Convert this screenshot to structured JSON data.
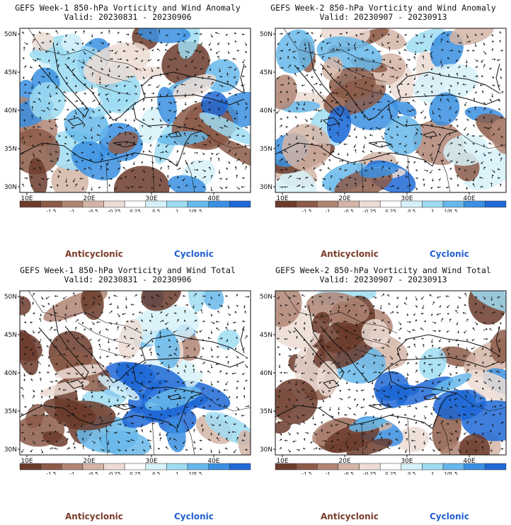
{
  "panels": [
    {
      "title": "GEFS Week-1 850-hPa Vorticity and Wind Anomaly",
      "valid": "Valid: 20230831 - 20230906",
      "tint": "anomaly",
      "seed": 3
    },
    {
      "title": "GEFS Week-2 850-hPa Vorticity and Wind Anomaly",
      "valid": "Valid: 20230907 - 20230913",
      "tint": "anomaly2",
      "seed": 7
    },
    {
      "title": "GEFS Week-1 850-hPa Vorticity and Wind Total",
      "valid": "Valid: 20230831 - 20230906",
      "tint": "total",
      "seed": 11
    },
    {
      "title": "GEFS Week-2 850-hPa Vorticity and Wind Total",
      "valid": "Valid: 20230907 - 20230913",
      "tint": "total2",
      "seed": 17
    }
  ],
  "lat_labels": [
    "50N",
    "45N",
    "40N",
    "35N",
    "30N"
  ],
  "lon_labels": [
    "10E",
    "20E",
    "30E",
    "40E"
  ],
  "colorbar": {
    "labels": [
      "-1.5",
      "-1",
      "-0.5",
      "-0.25",
      "0.25",
      "0.5",
      "1",
      "1.5"
    ],
    "unit_label": "10",
    "colors": [
      "#6b3b2b",
      "#8c5a48",
      "#b08574",
      "#d3b4a6",
      "#ecdcd4",
      "#ffffff",
      "#d6f1f9",
      "#9fdcf2",
      "#67b8ea",
      "#3a8fe0",
      "#1f68d6"
    ]
  },
  "legend": {
    "anticyclonic": "Anticyclonic",
    "cyclonic": "Cyclonic"
  },
  "colors": {
    "anticyclonic": "#7a3b2a",
    "cyclonic": "#1f5fd0"
  }
}
